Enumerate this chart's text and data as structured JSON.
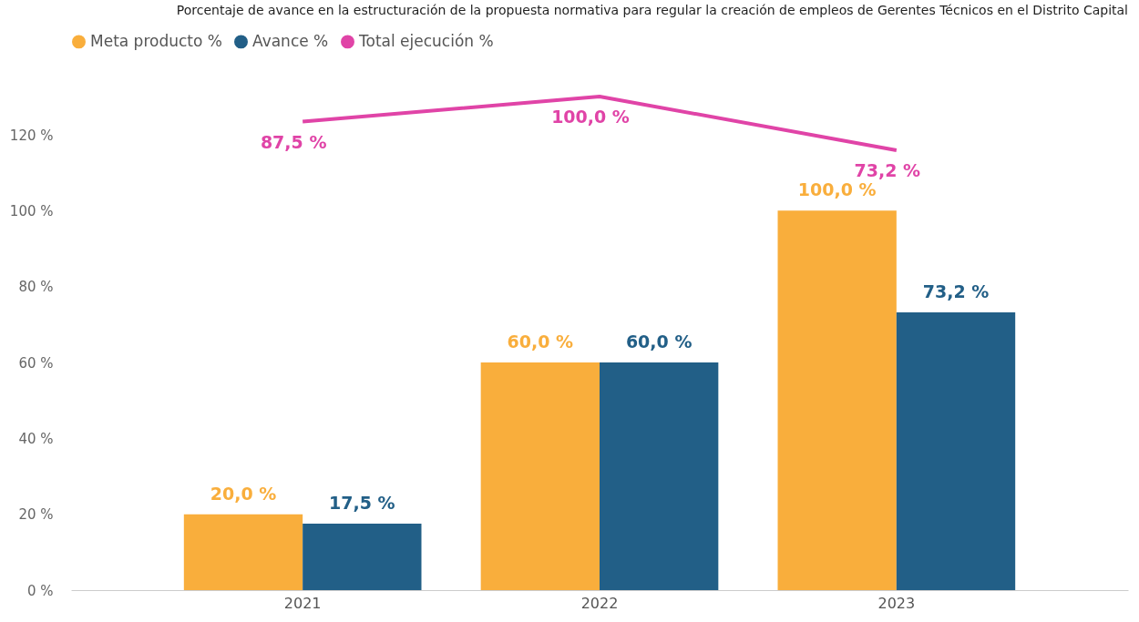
{
  "chart_data": {
    "type": "bar",
    "title": "Porcentaje de avance en la estructuración de la propuesta normativa para regular la creación de empleos de Gerentes Técnicos en el Distrito Capital",
    "categories": [
      "2021",
      "2022",
      "2023"
    ],
    "series": [
      {
        "name": "Meta producto %",
        "color": "#f9ae3c",
        "values": [
          20.0,
          60.0,
          100.0
        ],
        "value_labels": [
          "20,0 %",
          "60,0 %",
          "100,0 %"
        ]
      },
      {
        "name": "Avance %",
        "color": "#225f87",
        "values": [
          17.5,
          60.0,
          73.2
        ],
        "value_labels": [
          "17,5 %",
          "60,0 %",
          "73,2 %"
        ]
      },
      {
        "name": "Total ejecución %",
        "type": "line",
        "axis": "y2",
        "color": "#e044a7",
        "values": [
          87.5,
          100.0,
          73.2
        ],
        "value_labels": [
          "87,5 %",
          "100,0 %",
          "73,2 %"
        ]
      }
    ],
    "ylim": [
      0,
      120
    ],
    "yticks": [
      {
        "value": 0,
        "label": "0 %"
      },
      {
        "value": 20,
        "label": "20 %"
      },
      {
        "value": 40,
        "label": "40 %"
      },
      {
        "value": 60,
        "label": "60 %"
      },
      {
        "value": 80,
        "label": "80 %"
      },
      {
        "value": 100,
        "label": "100 %"
      },
      {
        "value": 120,
        "label": "120 %"
      }
    ],
    "legend": "top left"
  }
}
